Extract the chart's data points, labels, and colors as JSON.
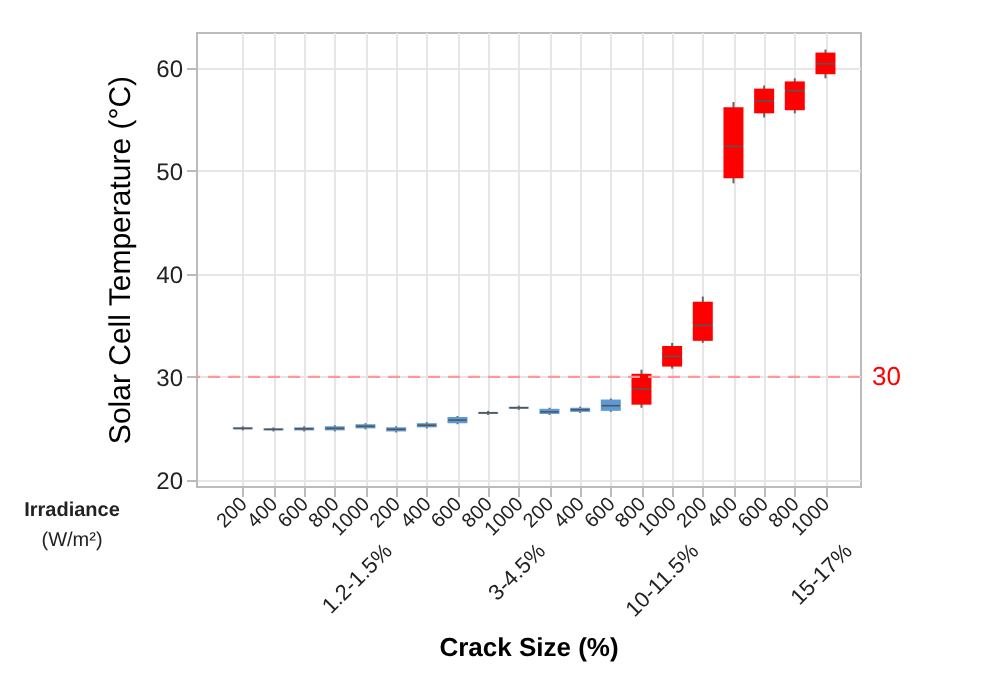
{
  "chart_data": {
    "type": "box",
    "ylabel": "Solar Cell Temperature (°C)",
    "xlabel": "Crack Size (%)",
    "categories": [
      "200",
      "400",
      "600",
      "800",
      "1000",
      "200",
      "400",
      "600",
      "800",
      "1000",
      "200",
      "400",
      "600",
      "800",
      "1000",
      "200",
      "400",
      "600",
      "800",
      "1000"
    ],
    "boxes": [
      {
        "low": 24.8,
        "q1": 24.9,
        "median": 25.0,
        "q3": 25.1,
        "high": 25.2
      },
      {
        "low": 24.7,
        "q1": 24.8,
        "median": 24.9,
        "q3": 25.0,
        "high": 25.1
      },
      {
        "low": 24.7,
        "q1": 24.8,
        "median": 24.95,
        "q3": 25.1,
        "high": 25.2
      },
      {
        "low": 24.7,
        "q1": 24.8,
        "median": 25.0,
        "q3": 25.2,
        "high": 25.3
      },
      {
        "low": 24.9,
        "q1": 25.0,
        "median": 25.2,
        "q3": 25.4,
        "high": 25.5
      },
      {
        "low": 24.6,
        "q1": 24.7,
        "median": 24.9,
        "q3": 25.1,
        "high": 25.2
      },
      {
        "low": 25.0,
        "q1": 25.1,
        "median": 25.3,
        "q3": 25.5,
        "high": 25.6
      },
      {
        "low": 25.4,
        "q1": 25.5,
        "median": 25.8,
        "q3": 26.1,
        "high": 26.2
      },
      {
        "low": 26.3,
        "q1": 26.4,
        "median": 26.5,
        "q3": 26.6,
        "high": 26.7
      },
      {
        "low": 26.8,
        "q1": 26.9,
        "median": 27.0,
        "q3": 27.1,
        "high": 27.2
      },
      {
        "low": 26.3,
        "q1": 26.4,
        "median": 26.6,
        "q3": 26.9,
        "high": 27.0
      },
      {
        "low": 26.5,
        "q1": 26.6,
        "median": 26.8,
        "q3": 27.0,
        "high": 27.1
      },
      {
        "low": 26.6,
        "q1": 26.7,
        "median": 27.2,
        "q3": 27.8,
        "high": 27.9
      },
      {
        "low": 27.0,
        "q1": 27.3,
        "median": 28.8,
        "q3": 30.3,
        "high": 30.7
      },
      {
        "low": 30.8,
        "q1": 31.0,
        "median": 32.0,
        "q3": 33.0,
        "high": 33.3
      },
      {
        "low": 33.3,
        "q1": 33.5,
        "median": 35.0,
        "q3": 37.3,
        "high": 37.8
      },
      {
        "low": 48.8,
        "q1": 49.3,
        "median": 52.4,
        "q3": 56.2,
        "high": 56.7
      },
      {
        "low": 55.2,
        "q1": 55.6,
        "median": 56.8,
        "q3": 58.0,
        "high": 58.3
      },
      {
        "low": 55.6,
        "q1": 55.9,
        "median": 57.8,
        "q3": 58.7,
        "high": 59.0
      },
      {
        "low": 59.0,
        "q1": 59.4,
        "median": 60.4,
        "q3": 61.5,
        "high": 61.8
      }
    ],
    "colors": [
      "#5b9bd5",
      "#5b9bd5",
      "#5b9bd5",
      "#5b9bd5",
      "#5b9bd5",
      "#5b9bd5",
      "#5b9bd5",
      "#5b9bd5",
      "#5b9bd5",
      "#5b9bd5",
      "#5b9bd5",
      "#5b9bd5",
      "#5b9bd5",
      "#ff0000",
      "#ff0000",
      "#ff0000",
      "#ff0000",
      "#ff0000",
      "#ff0000",
      "#ff0000"
    ],
    "ylim": [
      19.4,
      63.5
    ],
    "yticks": [
      20,
      30,
      40,
      50,
      60
    ],
    "grid": true,
    "ref_lines": [
      {
        "axis": "y",
        "value": 30,
        "label": "30",
        "color": "#ff9999",
        "line_style": "dashed"
      }
    ],
    "annotations": [
      "Irradiance",
      "(W/m²)",
      "1.2-1.5%",
      "3-4.5%",
      "10-11.5%",
      "15-17%"
    ]
  }
}
